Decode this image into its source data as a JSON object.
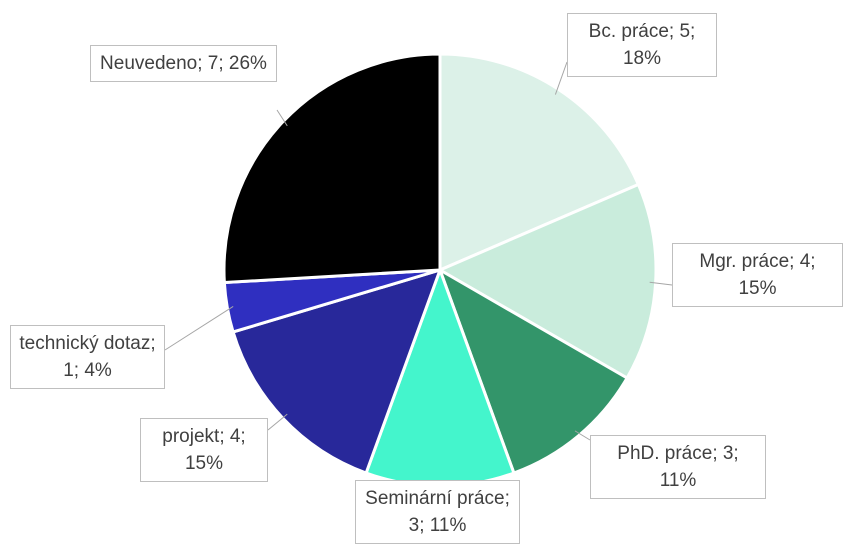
{
  "chart_data": {
    "type": "pie",
    "categories": [
      "Bc. práce",
      "Mgr. práce",
      "PhD. práce",
      "Seminární práce",
      "projekt",
      "technický dotaz",
      "Neuvedeno"
    ],
    "values": [
      5,
      4,
      3,
      3,
      4,
      1,
      7
    ],
    "value_labels": [
      "; 5; 18%",
      "; 4; 15%",
      "; 3; 11%",
      "; 3; 11%",
      "; 4; 15%",
      "; 1; 4%",
      "; 7; 26%"
    ],
    "colors": [
      "#dcf1e8",
      "#c9ecdc",
      "#33956a",
      "#44f5cc",
      "#28289a",
      "#2f2fc0",
      "#000000"
    ]
  }
}
